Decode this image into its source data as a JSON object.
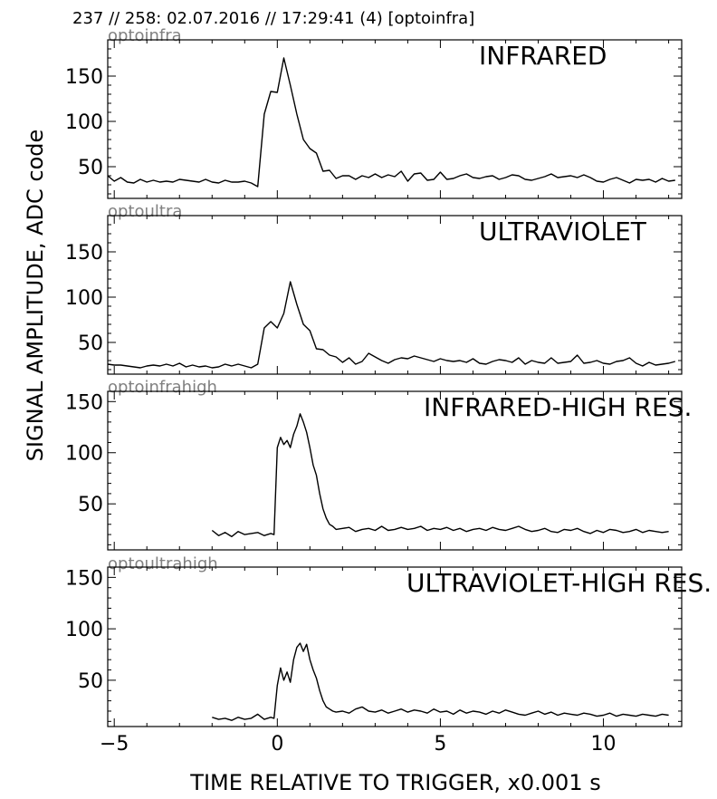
{
  "header": "237 // 258:   02.07.2016 // 17:29:41 (4)  [optoinfra]",
  "ylabel": "SIGNAL AMPLITUDE,  ADC code",
  "xlabel": "TIME RELATIVE TO TRIGGER,   x0.001 s",
  "chart_data": [
    {
      "type": "line",
      "channel": "optoinfra",
      "title": "INFRARED",
      "xlim": [
        -5.2,
        12.4
      ],
      "ylim": [
        15,
        190
      ],
      "yticks": [
        50,
        100,
        150
      ],
      "xticks": [
        -5,
        0,
        5,
        10
      ],
      "x": [
        -5.2,
        -5.0,
        -4.8,
        -4.6,
        -4.4,
        -4.2,
        -4.0,
        -3.8,
        -3.6,
        -3.4,
        -3.2,
        -3.0,
        -2.8,
        -2.6,
        -2.4,
        -2.2,
        -2.0,
        -1.8,
        -1.6,
        -1.4,
        -1.2,
        -1.0,
        -0.8,
        -0.6,
        -0.4,
        -0.2,
        0.0,
        0.2,
        0.4,
        0.6,
        0.8,
        1.0,
        1.2,
        1.4,
        1.6,
        1.8,
        2.0,
        2.2,
        2.4,
        2.6,
        2.8,
        3.0,
        3.2,
        3.4,
        3.6,
        3.8,
        4.0,
        4.2,
        4.4,
        4.6,
        4.8,
        5.0,
        5.2,
        5.4,
        5.6,
        5.8,
        6.0,
        6.2,
        6.4,
        6.6,
        6.8,
        7.0,
        7.2,
        7.4,
        7.6,
        7.8,
        8.0,
        8.2,
        8.4,
        8.6,
        8.8,
        9.0,
        9.2,
        9.4,
        9.6,
        9.8,
        10.0,
        10.2,
        10.4,
        10.6,
        10.8,
        11.0,
        11.2,
        11.4,
        11.6,
        11.8,
        12.0,
        12.2
      ],
      "y": [
        40,
        34,
        38,
        33,
        32,
        36,
        33,
        35,
        33,
        34,
        33,
        36,
        35,
        34,
        33,
        36,
        33,
        32,
        35,
        33,
        33,
        34,
        32,
        28,
        108,
        133,
        132,
        170,
        140,
        108,
        80,
        70,
        65,
        45,
        46,
        37,
        40,
        40,
        36,
        40,
        38,
        42,
        38,
        41,
        39,
        45,
        34,
        42,
        43,
        35,
        36,
        44,
        36,
        37,
        40,
        42,
        38,
        37,
        39,
        40,
        36,
        38,
        41,
        40,
        36,
        35,
        37,
        39,
        42,
        38,
        39,
        40,
        38,
        41,
        38,
        34,
        33,
        36,
        38,
        35,
        32,
        36,
        35,
        36,
        33,
        37,
        34,
        35
      ]
    },
    {
      "type": "line",
      "channel": "optoultra",
      "title": "ULTRAVIOLET",
      "xlim": [
        -5.2,
        12.4
      ],
      "ylim": [
        15,
        190
      ],
      "yticks": [
        50,
        100,
        150
      ],
      "xticks": [
        -5,
        0,
        5,
        10
      ],
      "x": [
        -5.2,
        -5.0,
        -4.8,
        -4.6,
        -4.4,
        -4.2,
        -4.0,
        -3.8,
        -3.6,
        -3.4,
        -3.2,
        -3.0,
        -2.8,
        -2.6,
        -2.4,
        -2.2,
        -2.0,
        -1.8,
        -1.6,
        -1.4,
        -1.2,
        -1.0,
        -0.8,
        -0.6,
        -0.4,
        -0.2,
        0.0,
        0.2,
        0.4,
        0.6,
        0.8,
        1.0,
        1.2,
        1.4,
        1.6,
        1.8,
        2.0,
        2.2,
        2.4,
        2.6,
        2.8,
        3.0,
        3.2,
        3.4,
        3.6,
        3.8,
        4.0,
        4.2,
        4.4,
        4.6,
        4.8,
        5.0,
        5.2,
        5.4,
        5.6,
        5.8,
        6.0,
        6.2,
        6.4,
        6.6,
        6.8,
        7.0,
        7.2,
        7.4,
        7.6,
        7.8,
        8.0,
        8.2,
        8.4,
        8.6,
        8.8,
        9.0,
        9.2,
        9.4,
        9.6,
        9.8,
        10.0,
        10.2,
        10.4,
        10.6,
        10.8,
        11.0,
        11.2,
        11.4,
        11.6,
        11.8,
        12.0,
        12.2
      ],
      "y": [
        26,
        25,
        25,
        24,
        23,
        22,
        24,
        25,
        24,
        26,
        24,
        27,
        23,
        25,
        23,
        24,
        22,
        23,
        26,
        24,
        26,
        24,
        22,
        26,
        66,
        73,
        66,
        82,
        117,
        92,
        70,
        63,
        43,
        42,
        36,
        34,
        28,
        33,
        26,
        29,
        38,
        34,
        30,
        27,
        31,
        33,
        32,
        35,
        33,
        31,
        29,
        32,
        30,
        29,
        30,
        28,
        32,
        27,
        26,
        29,
        31,
        30,
        28,
        33,
        26,
        30,
        28,
        27,
        33,
        27,
        28,
        29,
        36,
        27,
        28,
        30,
        27,
        26,
        29,
        30,
        33,
        27,
        24,
        28,
        25,
        26,
        27,
        29
      ]
    },
    {
      "type": "line",
      "channel": "optoinfrahigh",
      "title": "INFRARED-HIGH RES.",
      "xlim": [
        -5.2,
        12.4
      ],
      "ylim": [
        5,
        160
      ],
      "yticks": [
        50,
        100,
        150
      ],
      "xticks": [
        -5,
        0,
        5,
        10
      ],
      "x": [
        -2.0,
        -1.8,
        -1.6,
        -1.4,
        -1.2,
        -1.0,
        -0.8,
        -0.6,
        -0.4,
        -0.2,
        -0.1,
        0.0,
        0.1,
        0.2,
        0.3,
        0.4,
        0.5,
        0.6,
        0.7,
        0.8,
        0.9,
        1.0,
        1.1,
        1.2,
        1.3,
        1.4,
        1.5,
        1.6,
        1.7,
        1.8,
        2.0,
        2.2,
        2.4,
        2.6,
        2.8,
        3.0,
        3.2,
        3.4,
        3.6,
        3.8,
        4.0,
        4.2,
        4.4,
        4.6,
        4.8,
        5.0,
        5.2,
        5.4,
        5.6,
        5.8,
        6.0,
        6.2,
        6.4,
        6.6,
        6.8,
        7.0,
        7.2,
        7.4,
        7.6,
        7.8,
        8.0,
        8.2,
        8.4,
        8.6,
        8.8,
        9.0,
        9.2,
        9.4,
        9.6,
        9.8,
        10.0,
        10.2,
        10.4,
        10.6,
        10.8,
        11.0,
        11.2,
        11.4,
        11.6,
        11.8,
        12.0
      ],
      "y": [
        24,
        19,
        22,
        18,
        23,
        20,
        21,
        22,
        19,
        21,
        20,
        105,
        115,
        108,
        112,
        105,
        118,
        126,
        138,
        130,
        120,
        105,
        88,
        78,
        60,
        45,
        36,
        30,
        28,
        25,
        26,
        27,
        23,
        25,
        26,
        24,
        28,
        24,
        25,
        27,
        25,
        26,
        28,
        24,
        26,
        25,
        27,
        24,
        26,
        23,
        25,
        26,
        24,
        27,
        25,
        24,
        26,
        28,
        25,
        23,
        24,
        26,
        23,
        22,
        25,
        24,
        26,
        23,
        21,
        24,
        22,
        25,
        24,
        22,
        23,
        25,
        22,
        24,
        23,
        22,
        23
      ]
    },
    {
      "type": "line",
      "channel": "optoultrahigh",
      "title": "ULTRAVIOLET-HIGH RES.",
      "xlim": [
        -5.2,
        12.4
      ],
      "ylim": [
        5,
        160
      ],
      "yticks": [
        50,
        100,
        150
      ],
      "xticks": [
        -5,
        0,
        5,
        10
      ],
      "x": [
        -2.0,
        -1.8,
        -1.6,
        -1.4,
        -1.2,
        -1.0,
        -0.8,
        -0.6,
        -0.4,
        -0.2,
        -0.1,
        0.0,
        0.1,
        0.2,
        0.3,
        0.4,
        0.5,
        0.6,
        0.7,
        0.8,
        0.9,
        1.0,
        1.1,
        1.2,
        1.3,
        1.4,
        1.5,
        1.6,
        1.7,
        1.8,
        2.0,
        2.2,
        2.4,
        2.6,
        2.8,
        3.0,
        3.2,
        3.4,
        3.6,
        3.8,
        4.0,
        4.2,
        4.4,
        4.6,
        4.8,
        5.0,
        5.2,
        5.4,
        5.6,
        5.8,
        6.0,
        6.2,
        6.4,
        6.6,
        6.8,
        7.0,
        7.2,
        7.4,
        7.6,
        7.8,
        8.0,
        8.2,
        8.4,
        8.6,
        8.8,
        9.0,
        9.2,
        9.4,
        9.6,
        9.8,
        10.0,
        10.2,
        10.4,
        10.6,
        10.8,
        11.0,
        11.2,
        11.4,
        11.6,
        11.8,
        12.0
      ],
      "y": [
        14,
        12,
        13,
        11,
        14,
        12,
        13,
        17,
        12,
        14,
        13,
        45,
        62,
        50,
        58,
        48,
        70,
        82,
        86,
        78,
        85,
        70,
        60,
        52,
        40,
        30,
        24,
        22,
        20,
        19,
        20,
        18,
        22,
        24,
        20,
        19,
        21,
        18,
        20,
        22,
        19,
        21,
        20,
        18,
        22,
        19,
        20,
        17,
        21,
        18,
        20,
        19,
        17,
        20,
        18,
        21,
        19,
        17,
        16,
        18,
        20,
        17,
        19,
        16,
        18,
        17,
        16,
        18,
        17,
        15,
        16,
        18,
        15,
        17,
        16,
        15,
        17,
        16,
        15,
        17,
        16
      ]
    }
  ]
}
